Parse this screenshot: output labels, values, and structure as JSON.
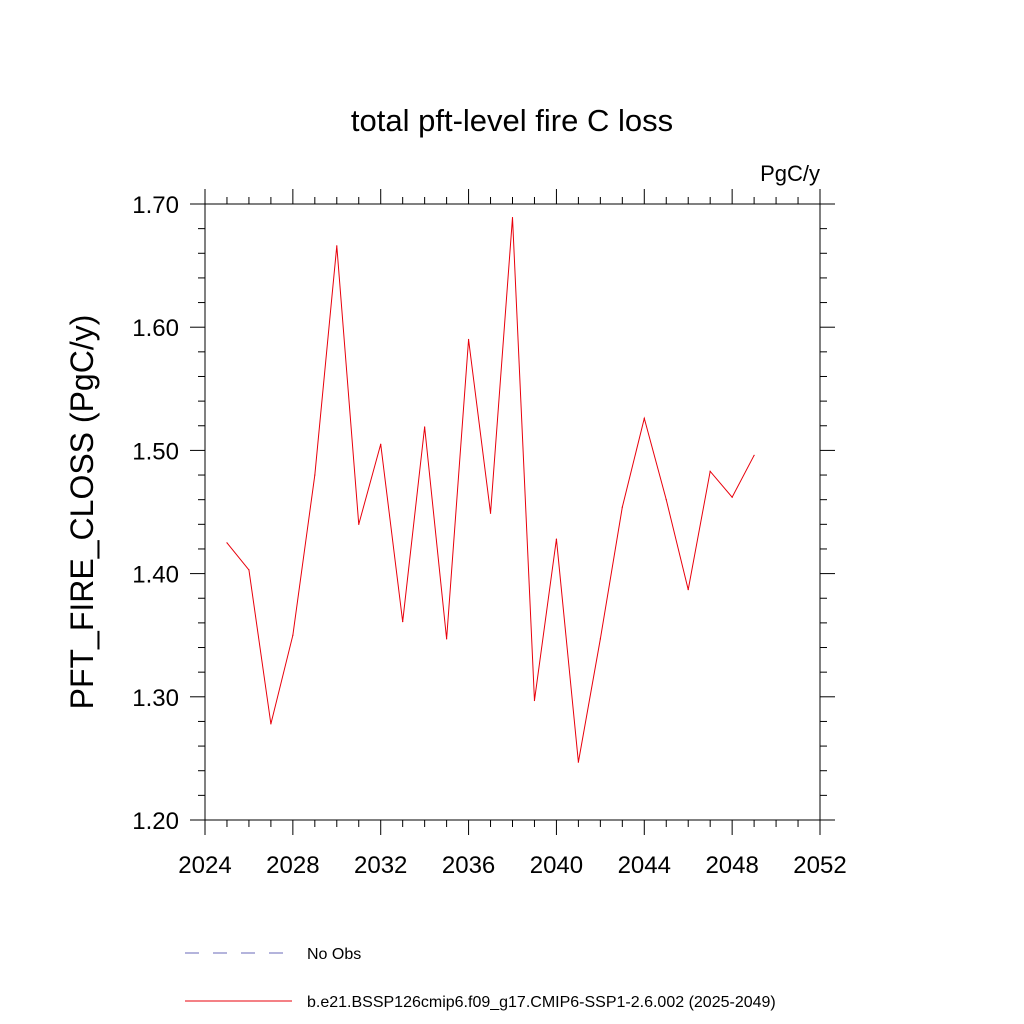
{
  "chart_data": {
    "type": "line",
    "title": "total pft-level fire C loss",
    "units": "PgC/y",
    "ylabel": "PFT_FIRE_CLOSS  (PgC/y)",
    "xlabel": "",
    "xlim": [
      2024,
      2052
    ],
    "ylim": [
      1.2,
      1.7
    ],
    "xticks": [
      "2024",
      "2028",
      "2032",
      "2036",
      "2040",
      "2044",
      "2048",
      "2052"
    ],
    "yticks": [
      "1.20",
      "1.30",
      "1.40",
      "1.50",
      "1.60",
      "1.70"
    ],
    "series": [
      {
        "name": "b.e21.BSSP126cmip6.f09_g17.CMIP6-SSP1-2.6.002 (2025-2049)",
        "color": "#e8000b",
        "x": [
          2025,
          2026,
          2027,
          2028,
          2029,
          2030,
          2031,
          2032,
          2033,
          2034,
          2035,
          2036,
          2037,
          2038,
          2039,
          2040,
          2041,
          2042,
          2043,
          2044,
          2045,
          2046,
          2047,
          2048,
          2049
        ],
        "values": [
          1.425,
          1.403,
          1.278,
          1.35,
          1.48,
          1.666,
          1.44,
          1.505,
          1.361,
          1.519,
          1.347,
          1.59,
          1.449,
          1.689,
          1.297,
          1.428,
          1.247,
          1.347,
          1.454,
          1.526,
          1.46,
          1.387,
          1.483,
          1.462,
          1.496
        ]
      }
    ],
    "legend": [
      {
        "label": "No Obs",
        "style": "dashed",
        "color": "#6a6ab8"
      },
      {
        "label": "b.e21.BSSP126cmip6.f09_g17.CMIP6-SSP1-2.6.002 (2025-2049)",
        "style": "solid",
        "color": "#e8000b"
      }
    ],
    "legend_position": "bottom"
  }
}
